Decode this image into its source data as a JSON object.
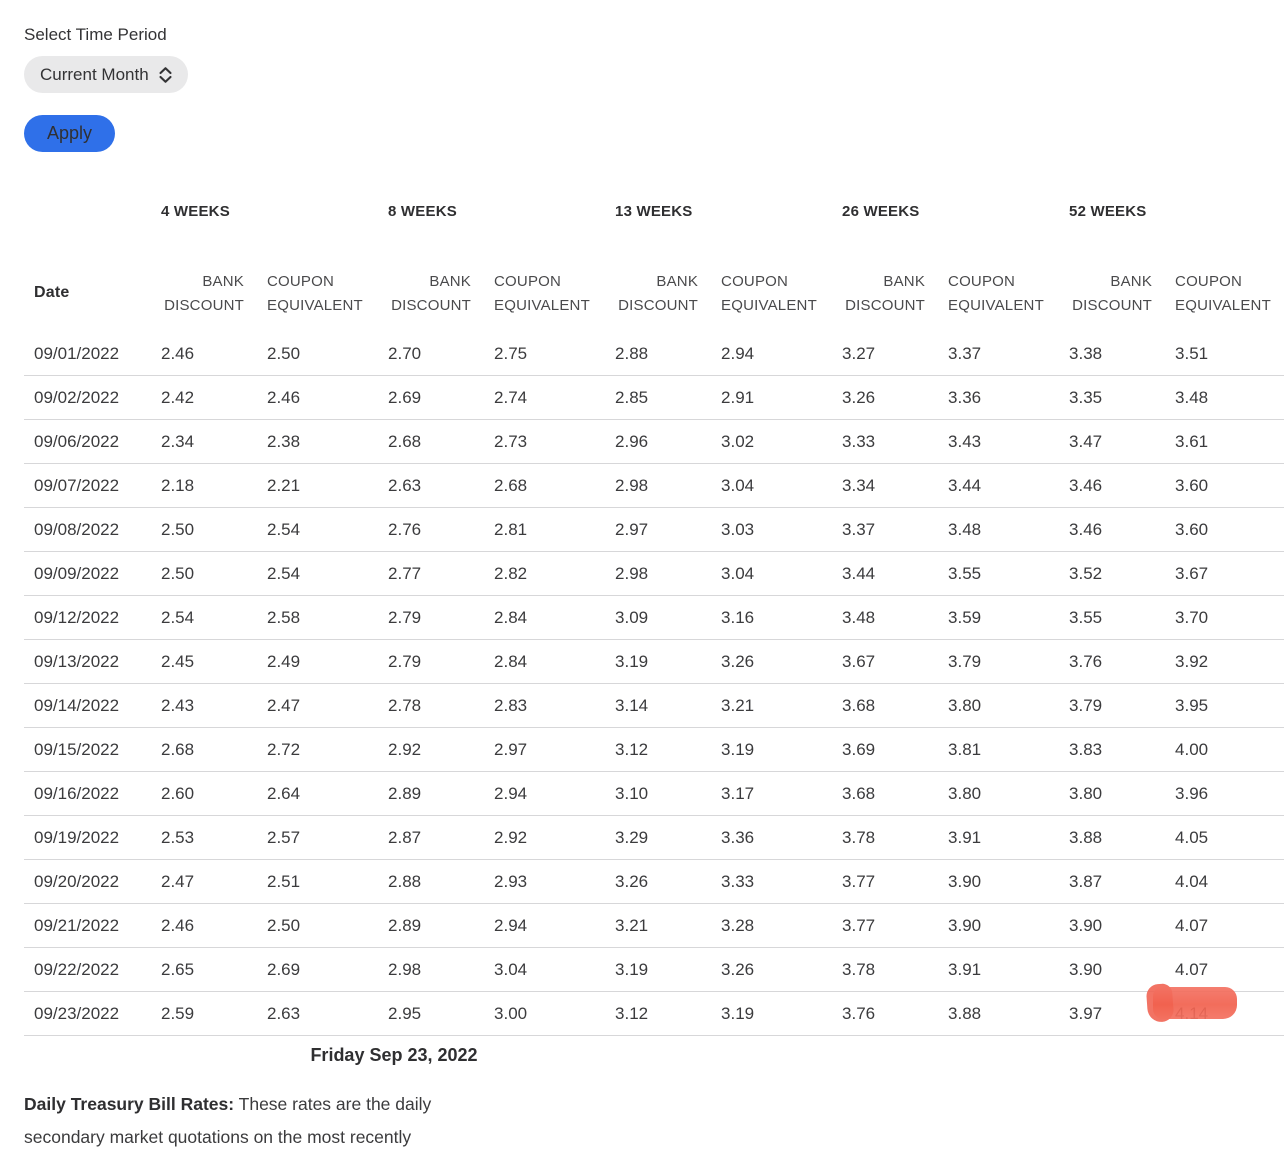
{
  "controls": {
    "label": "Select Time Period",
    "select_value": "Current Month",
    "apply_label": "Apply"
  },
  "table": {
    "date_header": "Date",
    "groups": [
      {
        "label": "4 WEEKS"
      },
      {
        "label": "8 WEEKS"
      },
      {
        "label": "13 WEEKS"
      },
      {
        "label": "26 WEEKS"
      },
      {
        "label": "52 WEEKS"
      }
    ],
    "bank_discount_label": "BANK DISCOUNT",
    "coupon_equivalent_label": "COUPON EQUIVALENT",
    "rows": [
      {
        "date": "09/01/2022",
        "values": [
          "2.46",
          "2.50",
          "2.70",
          "2.75",
          "2.88",
          "2.94",
          "3.27",
          "3.37",
          "3.38",
          "3.51"
        ]
      },
      {
        "date": "09/02/2022",
        "values": [
          "2.42",
          "2.46",
          "2.69",
          "2.74",
          "2.85",
          "2.91",
          "3.26",
          "3.36",
          "3.35",
          "3.48"
        ]
      },
      {
        "date": "09/06/2022",
        "values": [
          "2.34",
          "2.38",
          "2.68",
          "2.73",
          "2.96",
          "3.02",
          "3.33",
          "3.43",
          "3.47",
          "3.61"
        ]
      },
      {
        "date": "09/07/2022",
        "values": [
          "2.18",
          "2.21",
          "2.63",
          "2.68",
          "2.98",
          "3.04",
          "3.34",
          "3.44",
          "3.46",
          "3.60"
        ]
      },
      {
        "date": "09/08/2022",
        "values": [
          "2.50",
          "2.54",
          "2.76",
          "2.81",
          "2.97",
          "3.03",
          "3.37",
          "3.48",
          "3.46",
          "3.60"
        ]
      },
      {
        "date": "09/09/2022",
        "values": [
          "2.50",
          "2.54",
          "2.77",
          "2.82",
          "2.98",
          "3.04",
          "3.44",
          "3.55",
          "3.52",
          "3.67"
        ]
      },
      {
        "date": "09/12/2022",
        "values": [
          "2.54",
          "2.58",
          "2.79",
          "2.84",
          "3.09",
          "3.16",
          "3.48",
          "3.59",
          "3.55",
          "3.70"
        ]
      },
      {
        "date": "09/13/2022",
        "values": [
          "2.45",
          "2.49",
          "2.79",
          "2.84",
          "3.19",
          "3.26",
          "3.67",
          "3.79",
          "3.76",
          "3.92"
        ]
      },
      {
        "date": "09/14/2022",
        "values": [
          "2.43",
          "2.47",
          "2.78",
          "2.83",
          "3.14",
          "3.21",
          "3.68",
          "3.80",
          "3.79",
          "3.95"
        ]
      },
      {
        "date": "09/15/2022",
        "values": [
          "2.68",
          "2.72",
          "2.92",
          "2.97",
          "3.12",
          "3.19",
          "3.69",
          "3.81",
          "3.83",
          "4.00"
        ]
      },
      {
        "date": "09/16/2022",
        "values": [
          "2.60",
          "2.64",
          "2.89",
          "2.94",
          "3.10",
          "3.17",
          "3.68",
          "3.80",
          "3.80",
          "3.96"
        ]
      },
      {
        "date": "09/19/2022",
        "values": [
          "2.53",
          "2.57",
          "2.87",
          "2.92",
          "3.29",
          "3.36",
          "3.78",
          "3.91",
          "3.88",
          "4.05"
        ]
      },
      {
        "date": "09/20/2022",
        "values": [
          "2.47",
          "2.51",
          "2.88",
          "2.93",
          "3.26",
          "3.33",
          "3.77",
          "3.90",
          "3.87",
          "4.04"
        ]
      },
      {
        "date": "09/21/2022",
        "values": [
          "2.46",
          "2.50",
          "2.89",
          "2.94",
          "3.21",
          "3.28",
          "3.77",
          "3.90",
          "3.90",
          "4.07"
        ]
      },
      {
        "date": "09/22/2022",
        "values": [
          "2.65",
          "2.69",
          "2.98",
          "3.04",
          "3.19",
          "3.26",
          "3.78",
          "3.91",
          "3.90",
          "4.07"
        ]
      },
      {
        "date": "09/23/2022",
        "values": [
          "2.59",
          "2.63",
          "2.95",
          "3.00",
          "3.12",
          "3.19",
          "3.76",
          "3.88",
          "3.97",
          "4.14"
        ]
      }
    ]
  },
  "caption": "Friday Sep 23, 2022",
  "footnote": {
    "bold": "Daily Treasury Bill Rates:",
    "text": " These rates are the daily secondary market quotations on the most recently"
  },
  "annotation": {
    "marker_color": "#f1604d"
  }
}
